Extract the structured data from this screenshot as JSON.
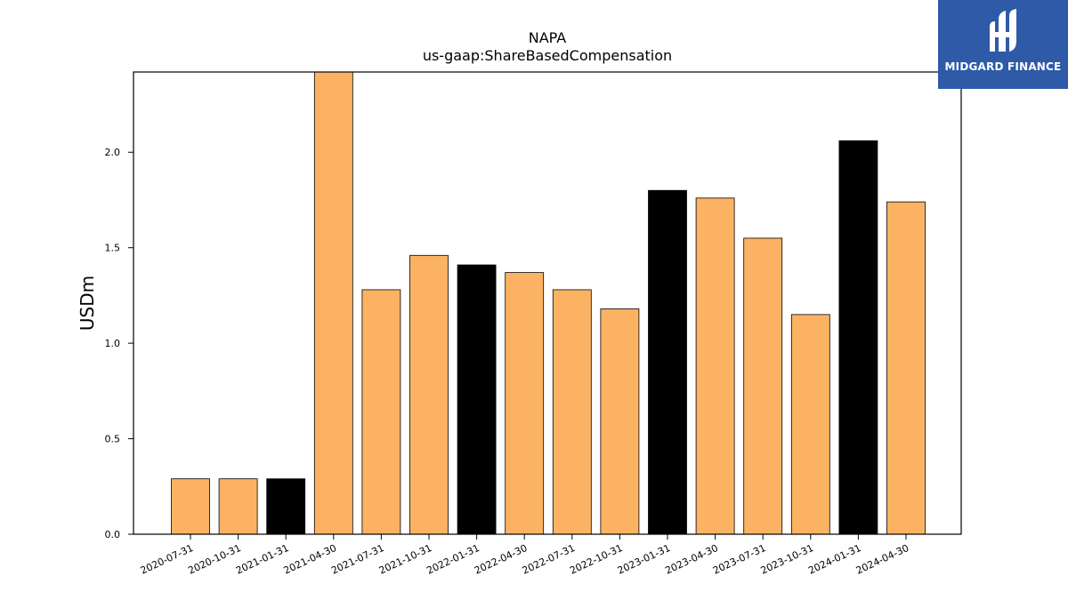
{
  "logo": {
    "text": "MIDGARD FINANCE",
    "background": "#2f5aa8",
    "icon": "midgard-logo-icon"
  },
  "chart_data": {
    "type": "bar",
    "title": "NAPA",
    "subtitle": "us-gaap:ShareBasedCompensation",
    "xlabel": "",
    "ylabel": "USDm",
    "ylim": [
      0,
      2.42
    ],
    "yticks": [
      "0.0",
      "0.5",
      "1.0",
      "1.5",
      "2.0"
    ],
    "categories": [
      "2020-07-31",
      "2020-10-31",
      "2021-01-31",
      "2021-04-30",
      "2021-07-31",
      "2021-10-31",
      "2022-01-31",
      "2022-04-30",
      "2022-07-31",
      "2022-10-31",
      "2023-01-31",
      "2023-04-30",
      "2023-07-31",
      "2023-10-31",
      "2024-01-31",
      "2024-04-30"
    ],
    "values": [
      0.29,
      0.29,
      0.29,
      2.42,
      1.28,
      1.46,
      1.41,
      1.37,
      1.28,
      1.18,
      1.8,
      1.76,
      1.55,
      1.15,
      2.06,
      1.74
    ],
    "bar_colors": [
      "#fbb363",
      "#fbb363",
      "#000000",
      "#fbb363",
      "#fbb363",
      "#fbb363",
      "#000000",
      "#fbb363",
      "#fbb363",
      "#fbb363",
      "#000000",
      "#fbb363",
      "#fbb363",
      "#fbb363",
      "#000000",
      "#fbb363"
    ],
    "grid": false,
    "legend": "none"
  }
}
